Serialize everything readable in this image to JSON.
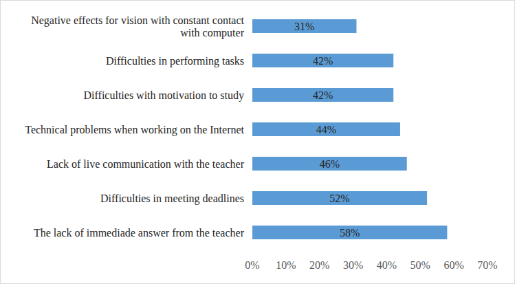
{
  "chart_data": {
    "type": "bar",
    "orientation": "horizontal",
    "categories": [
      "Negative effects for vision with constant contact with computer",
      "Difficulties in performing tasks",
      "Difficulties with motivation to study",
      "Technical problems when working on the Internet",
      "Lack of live communication with the teacher",
      "Difficulties in meeting deadlines",
      "The lack of immediade answer from the teacher"
    ],
    "values": [
      31,
      42,
      42,
      44,
      46,
      52,
      58
    ],
    "value_labels": [
      "31%",
      "42%",
      "42%",
      "44%",
      "46%",
      "52%",
      "58%"
    ],
    "data_labels": true,
    "color": "#5b9bd5",
    "xlim": [
      0,
      70
    ],
    "xticks": [
      {
        "value": 0,
        "label": "0%"
      },
      {
        "value": 10,
        "label": "10%"
      },
      {
        "value": 20,
        "label": "20%"
      },
      {
        "value": 30,
        "label": "30%"
      },
      {
        "value": 40,
        "label": "40%"
      },
      {
        "value": 50,
        "label": "50%"
      },
      {
        "value": 60,
        "label": "60%"
      },
      {
        "value": 70,
        "label": "70%"
      }
    ],
    "grid": false
  }
}
